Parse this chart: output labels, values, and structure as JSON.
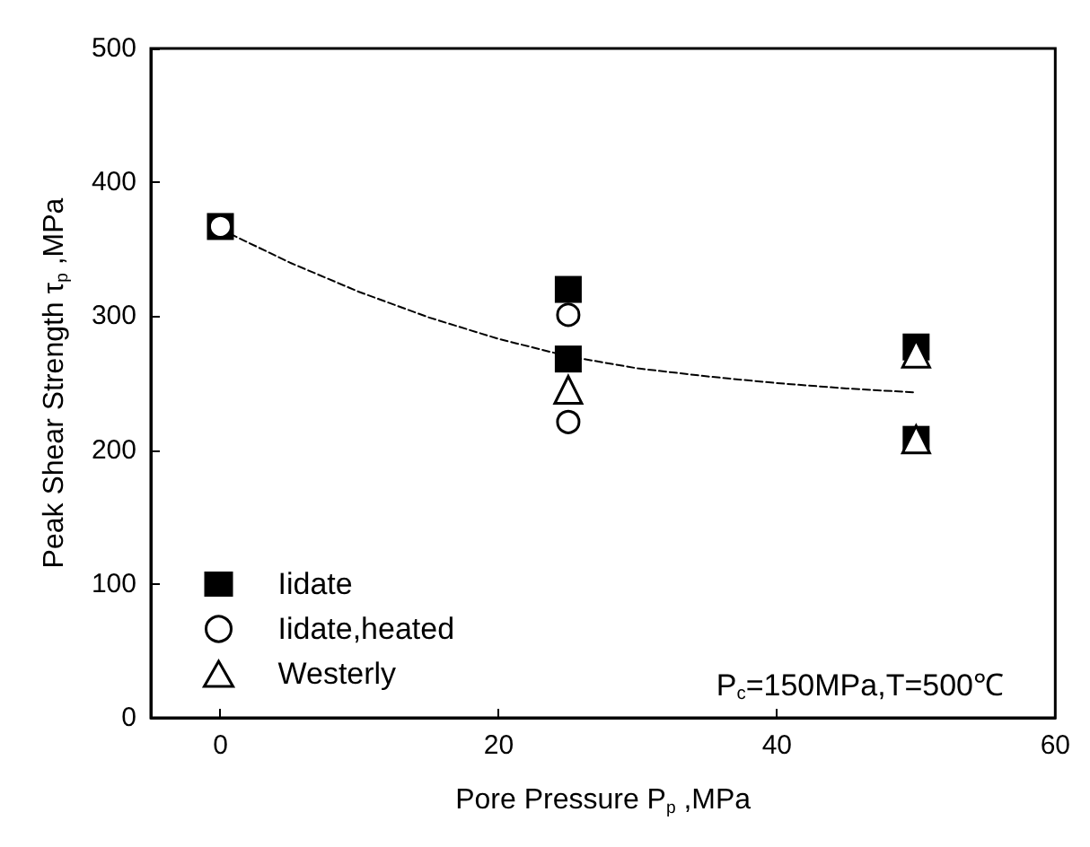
{
  "chart_data": {
    "type": "scatter",
    "xlabel": "Pore Pressure P$_{p}$ ,MPa",
    "ylabel": "Peak Shear Strength τ$_{p}$ ,MPa",
    "annotations": [
      "P$_{c}$=150MPa,T=500℃"
    ],
    "series": [
      {
        "name": "Iidate",
        "color": "#000000",
        "marker": "square",
        "x": [
          0,
          25,
          25,
          50,
          50
        ],
        "values": [
          367,
          320,
          268,
          277,
          208
        ]
      },
      {
        "name": "Iidate,heated",
        "color": "#000000",
        "marker": "circle",
        "x": [
          0,
          25,
          25
        ],
        "values": [
          367,
          301,
          221
        ]
      },
      {
        "name": "Westerly",
        "color": "#000000",
        "marker": "triangle",
        "x": [
          25,
          50,
          50
        ],
        "values": [
          245,
          272,
          208
        ]
      },
      {
        "type": "line",
        "color": "#000000",
        "line_style": "dashed",
        "marker": "none",
        "x": [
          0,
          5,
          10,
          15,
          20,
          25,
          30,
          35,
          40,
          45,
          50
        ],
        "values": [
          365,
          340,
          318,
          299,
          283,
          270,
          261,
          255,
          250,
          246,
          243
        ]
      }
    ],
    "xlim": [
      -5,
      60
    ],
    "xticks": [
      0,
      20,
      40,
      60
    ],
    "ylim": [
      0,
      500
    ],
    "yticks": [
      0,
      100,
      200,
      300,
      400,
      500
    ],
    "grid": false,
    "legend": "bottom left"
  }
}
